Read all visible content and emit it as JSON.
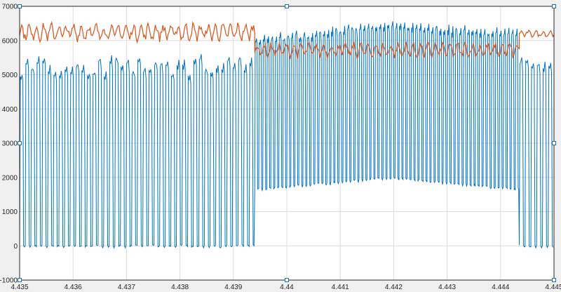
{
  "chart_data": {
    "type": "line",
    "title": "",
    "xlabel": "",
    "ylabel": "",
    "xlim": [
      4.435,
      4.445
    ],
    "ylim": [
      -1000,
      7000
    ],
    "grid": true,
    "legend": "none",
    "x_ticks": [
      "4.435",
      "4.436",
      "4.437",
      "4.438",
      "4.439",
      "4.44",
      "4.441",
      "4.442",
      "4.443",
      "4.444",
      "4.445"
    ],
    "y_ticks": [
      "-1000",
      "0",
      "1000",
      "2000",
      "3000",
      "4000",
      "5000",
      "6000",
      "7000"
    ],
    "series": [
      {
        "color": "#0072BD",
        "description": "pulse train switching between ~0 and ~5200-6400",
        "segments": [
          {
            "x_start": 4.435,
            "x_end": 4.4394,
            "high_mean": 5200,
            "high_ripple": 250,
            "low": 0,
            "pulses": 42
          },
          {
            "x_start": 4.4394,
            "x_end": 4.44435,
            "high_start": 5950,
            "high_peak": 6400,
            "high_end": 6150,
            "low_start": 1650,
            "low_peak": 2000,
            "low_end": 1650,
            "pulses": 66
          },
          {
            "x_start": 4.44435,
            "x_end": 4.445,
            "high_mean": 5300,
            "high_ripple": 250,
            "low": 0,
            "pulses": 6
          }
        ]
      },
      {
        "color": "#D95319",
        "description": "envelope trace",
        "segments": [
          {
            "x_start": 4.435,
            "x_end": 4.4394,
            "mean": 6250,
            "ripple": 300,
            "min": 5650,
            "max": 6700
          },
          {
            "x_start": 4.4394,
            "x_end": 4.44435,
            "mean": 5720,
            "ripple": 260,
            "min": 5450,
            "max": 6050
          },
          {
            "x_start": 4.44435,
            "x_end": 4.445,
            "mean": 6200,
            "ripple": 120,
            "min": 6050,
            "max": 6700
          }
        ]
      }
    ],
    "data_cursor_markers": [
      {
        "x": 4.435,
        "y": 7000
      },
      {
        "x": 4.44,
        "y": 7000
      },
      {
        "x": 4.445,
        "y": 7000
      },
      {
        "x": 4.435,
        "y": 3000
      },
      {
        "x": 4.445,
        "y": 3000
      },
      {
        "x": 4.435,
        "y": -1000
      },
      {
        "x": 4.44,
        "y": -1000
      },
      {
        "x": 4.445,
        "y": -1000
      }
    ]
  }
}
